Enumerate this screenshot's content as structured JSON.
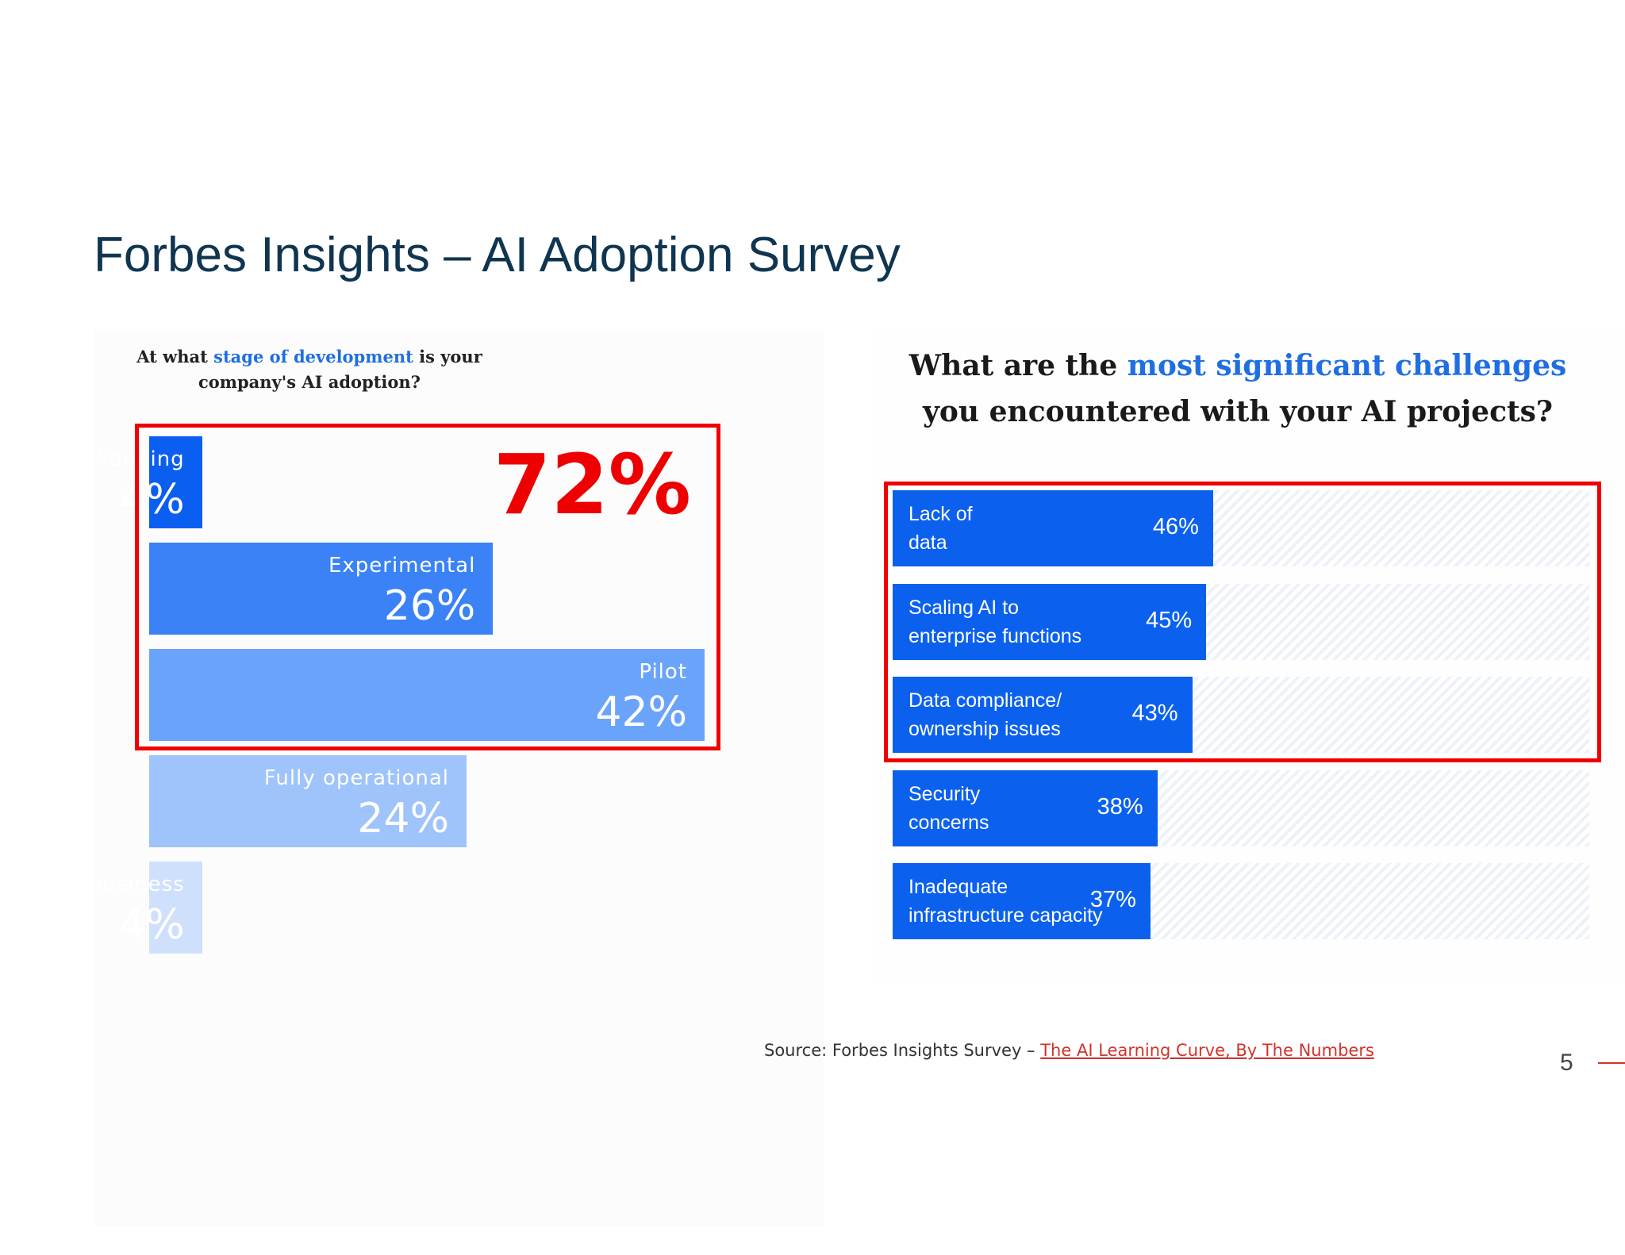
{
  "title": "Forbes Insights – AI Adoption Survey",
  "highlight_total": "72%",
  "colors": {
    "accent_red": "#f00000",
    "challenge_bar": "#0b61ee",
    "title": "#0f3550"
  },
  "chart_data": [
    {
      "type": "bar",
      "question_parts": [
        "At what ",
        "stage of development",
        " is your company's AI adoption?"
      ],
      "categories": [
        "Planning",
        "Experimental",
        "Pilot",
        "Fully operational",
        "Critical to business"
      ],
      "values": [
        4,
        26,
        42,
        24,
        4
      ],
      "value_labels": [
        "4%",
        "26%",
        "42%",
        "24%",
        "4%"
      ],
      "bar_colors": [
        "#0b5ff0",
        "#3a82f5",
        "#6aa4fa",
        "#9fc3fb",
        "#cfe0fd"
      ],
      "xlim": [
        0,
        42
      ]
    },
    {
      "type": "bar",
      "question_parts": [
        "What are the ",
        "most significant challenges",
        " you encountered with your AI projects?"
      ],
      "categories": [
        "Lack of data",
        "Scaling AI to enterprise functions",
        "Data compliance/ ownership issues",
        "Security concerns",
        "Inadequate infrastructure capacity"
      ],
      "label_lines": [
        [
          "Lack of",
          "data"
        ],
        [
          "Scaling AI to",
          "enterprise functions"
        ],
        [
          "Data compliance/",
          "ownership issues"
        ],
        [
          "Security",
          "concerns"
        ],
        [
          "Inadequate",
          "infrastructure capacity"
        ]
      ],
      "values": [
        46,
        45,
        43,
        38,
        37
      ],
      "value_labels": [
        "46%",
        "45%",
        "43%",
        "38%",
        "37%"
      ],
      "xlim": [
        0,
        100
      ]
    }
  ],
  "source": {
    "prefix": "Source: Forbes Insights Survey – ",
    "link_text": "The AI Learning Curve, By The Numbers"
  },
  "page_number": "5"
}
